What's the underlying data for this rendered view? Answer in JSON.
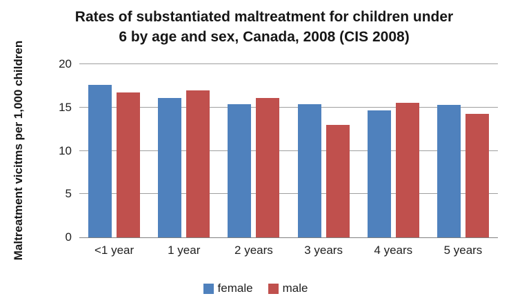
{
  "chart_data": {
    "type": "bar",
    "title": "Rates of substantiated maltreatment for children under 6 by age and sex, Canada, 2008 (CIS 2008)",
    "title_lines": [
      "Rates of substantiated maltreatment for children under",
      "6 by age and sex, Canada, 2008 (CIS 2008)"
    ],
    "xlabel": "",
    "ylabel": "Maltreatment vicitms per 1,000 children",
    "categories": [
      "<1 year",
      "1 year",
      "2 years",
      "3 years",
      "4 years",
      "5 years"
    ],
    "series": [
      {
        "name": "female",
        "color": "#4F81BD",
        "values": [
          17.6,
          16.1,
          15.4,
          15.4,
          14.7,
          15.3
        ]
      },
      {
        "name": "male",
        "color": "#C0504D",
        "values": [
          16.7,
          17.0,
          16.1,
          13.0,
          15.5,
          14.3
        ]
      }
    ],
    "ylim": [
      0,
      20
    ],
    "yticks": [
      0,
      5,
      10,
      15,
      20
    ],
    "grid": true,
    "legend_position": "bottom",
    "colors": {
      "female": "#4F81BD",
      "male": "#C0504D",
      "gridline": "#9e9e9e",
      "axis_line": "#7f7f7f",
      "text": "#161616",
      "background": "#ffffff"
    }
  }
}
